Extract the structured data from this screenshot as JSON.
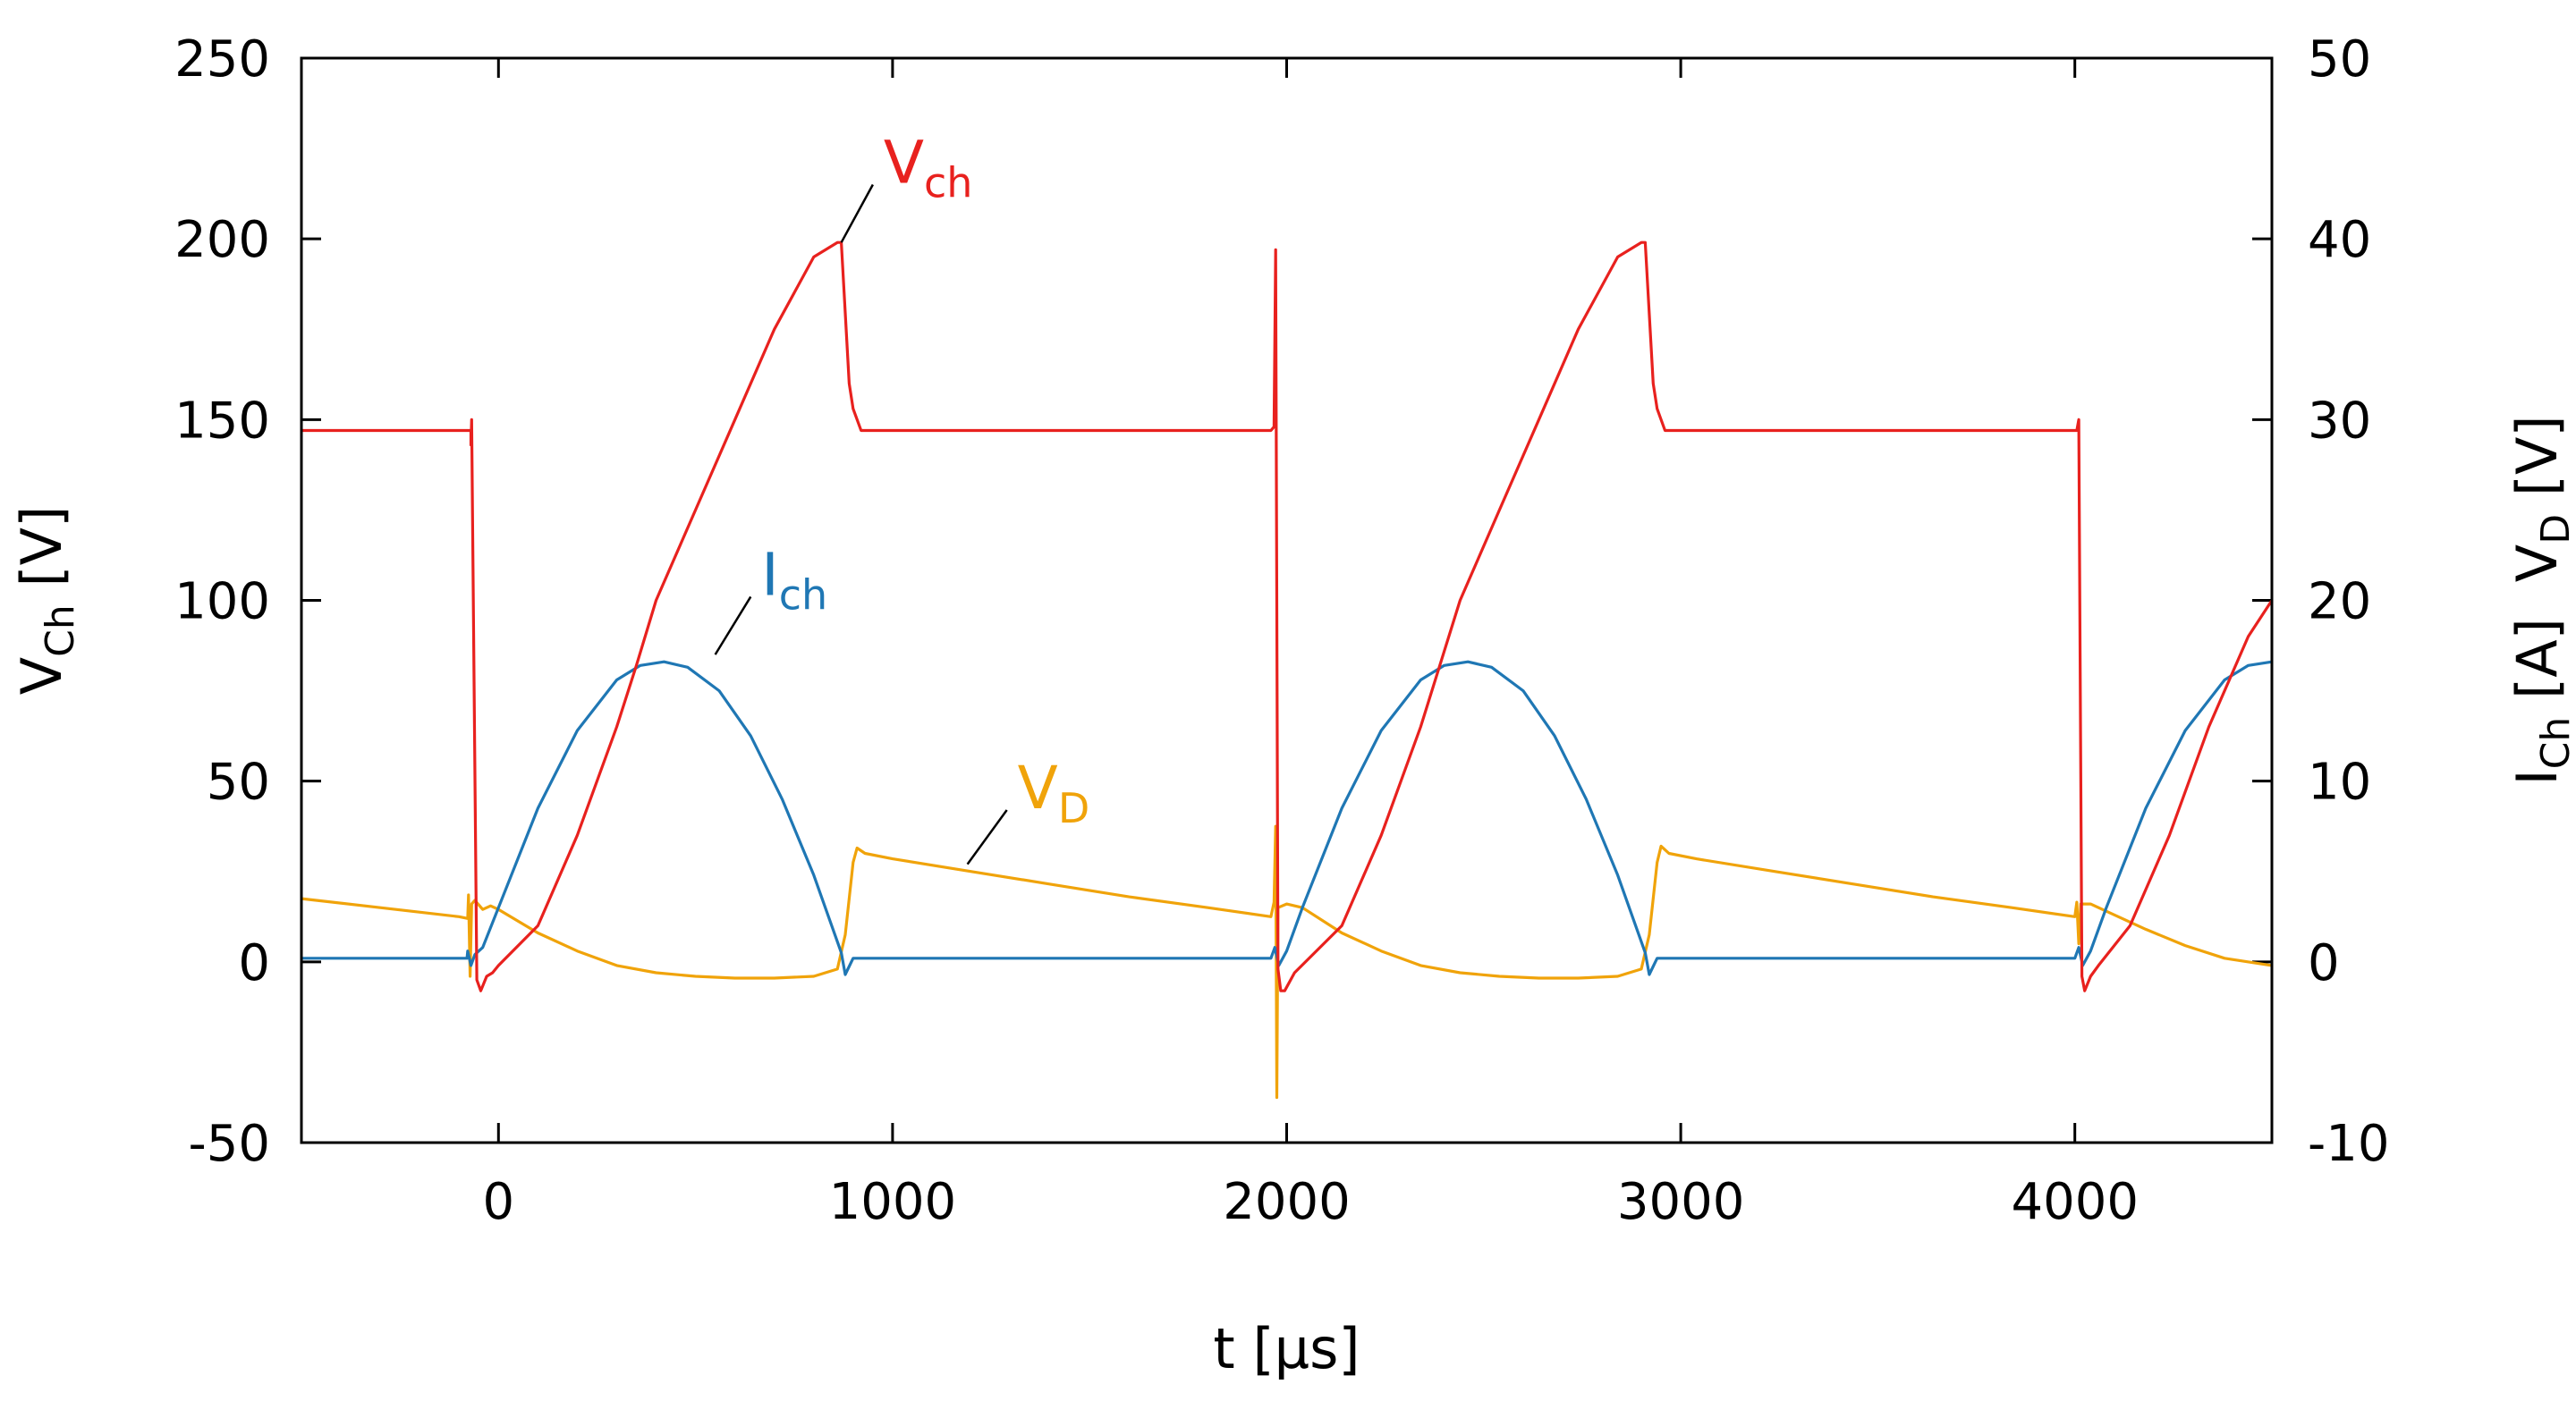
{
  "chart_data": {
    "type": "line",
    "title": "",
    "x": {
      "label_main": "t [µs]",
      "range": [
        -500,
        4500
      ],
      "ticks": [
        0,
        1000,
        2000,
        3000,
        4000
      ],
      "tick_labels": [
        "0",
        "1000",
        "2000",
        "3000",
        "4000"
      ]
    },
    "y_left": {
      "label_main": "V",
      "label_sub": "Ch",
      "label_unit": " [V]",
      "range": [
        -50,
        250
      ],
      "ticks": [
        -50,
        0,
        50,
        100,
        150,
        200,
        250
      ],
      "tick_labels": [
        "-50",
        "0",
        "50",
        "100",
        "150",
        "200",
        "250"
      ]
    },
    "y_right": {
      "label_i_main": "I",
      "label_i_sub": "Ch",
      "label_i_unit": " [A]",
      "label_v_main": "V",
      "label_v_sub": "D",
      "label_v_unit": " [V]",
      "range": [
        -10,
        50
      ],
      "ticks": [
        -10,
        0,
        10,
        20,
        30,
        40,
        50
      ],
      "tick_labels": [
        "-10",
        "0",
        "10",
        "20",
        "30",
        "40",
        "50"
      ]
    },
    "period_us": 2040,
    "series": [
      {
        "name": "Vch",
        "label_main": "V",
        "label_sub": "ch",
        "axis": "left",
        "color": "#e8211e",
        "points": [
          [
            -500,
            147
          ],
          [
            -70,
            147
          ],
          [
            -70,
            143
          ],
          [
            -68,
            150
          ],
          [
            -55,
            -5
          ],
          [
            -45,
            -8
          ],
          [
            -30,
            -4
          ],
          [
            -15,
            -3
          ],
          [
            0,
            -1
          ],
          [
            100,
            10
          ],
          [
            200,
            35
          ],
          [
            300,
            65
          ],
          [
            350,
            82
          ],
          [
            400,
            100
          ],
          [
            500,
            125
          ],
          [
            600,
            150
          ],
          [
            700,
            175
          ],
          [
            800,
            195
          ],
          [
            860,
            199
          ],
          [
            870,
            199
          ],
          [
            890,
            160
          ],
          [
            900,
            153
          ],
          [
            920,
            147
          ],
          [
            1960,
            147
          ],
          [
            1968,
            148
          ],
          [
            1972,
            197
          ],
          [
            1978,
            -2
          ],
          [
            1985,
            -8
          ],
          [
            1995,
            -8
          ],
          [
            2020,
            -3
          ],
          [
            2140,
            10
          ],
          [
            2240,
            35
          ],
          [
            2340,
            65
          ],
          [
            2440,
            100
          ],
          [
            2540,
            125
          ],
          [
            2640,
            150
          ],
          [
            2740,
            175
          ],
          [
            2840,
            195
          ],
          [
            2900,
            199
          ],
          [
            2910,
            199
          ],
          [
            2930,
            160
          ],
          [
            2940,
            153
          ],
          [
            2960,
            147
          ],
          [
            4005,
            147
          ],
          [
            4010,
            150
          ],
          [
            4018,
            -4
          ],
          [
            4025,
            -8
          ],
          [
            4040,
            -4
          ],
          [
            4060,
            -1
          ],
          [
            4140,
            10
          ],
          [
            4240,
            35
          ],
          [
            4340,
            65
          ],
          [
            4440,
            90
          ],
          [
            4500,
            100
          ]
        ]
      },
      {
        "name": "Ich",
        "label_main": "I",
        "label_sub": "ch",
        "axis": "right",
        "color": "#1f77b4",
        "points": [
          [
            -500,
            0.2
          ],
          [
            -80,
            0.2
          ],
          [
            -78,
            0.6
          ],
          [
            -70,
            -0.2
          ],
          [
            -60,
            0.4
          ],
          [
            -40,
            0.8
          ],
          [
            0,
            3.0
          ],
          [
            100,
            8.5
          ],
          [
            200,
            12.8
          ],
          [
            300,
            15.6
          ],
          [
            360,
            16.4
          ],
          [
            420,
            16.6
          ],
          [
            480,
            16.3
          ],
          [
            560,
            15.0
          ],
          [
            640,
            12.5
          ],
          [
            720,
            9.0
          ],
          [
            800,
            4.8
          ],
          [
            870,
            0.5
          ],
          [
            880,
            -0.7
          ],
          [
            900,
            0.2
          ],
          [
            1960,
            0.2
          ],
          [
            1970,
            0.8
          ],
          [
            1980,
            -0.2
          ],
          [
            2000,
            0.6
          ],
          [
            2040,
            3.0
          ],
          [
            2140,
            8.5
          ],
          [
            2240,
            12.8
          ],
          [
            2340,
            15.6
          ],
          [
            2400,
            16.4
          ],
          [
            2460,
            16.6
          ],
          [
            2520,
            16.3
          ],
          [
            2600,
            15.0
          ],
          [
            2680,
            12.5
          ],
          [
            2760,
            9.0
          ],
          [
            2840,
            4.8
          ],
          [
            2910,
            0.5
          ],
          [
            2920,
            -0.7
          ],
          [
            2940,
            0.2
          ],
          [
            4000,
            0.2
          ],
          [
            4010,
            0.8
          ],
          [
            4020,
            -0.2
          ],
          [
            4040,
            0.6
          ],
          [
            4080,
            3.0
          ],
          [
            4180,
            8.5
          ],
          [
            4280,
            12.8
          ],
          [
            4380,
            15.6
          ],
          [
            4440,
            16.4
          ],
          [
            4500,
            16.6
          ]
        ]
      },
      {
        "name": "VD",
        "label_main": "V",
        "label_sub": "D",
        "axis": "right",
        "color": "#f0a30a",
        "points": [
          [
            -500,
            3.5
          ],
          [
            -300,
            3.0
          ],
          [
            -100,
            2.5
          ],
          [
            -78,
            2.4
          ],
          [
            -76,
            3.7
          ],
          [
            -72,
            -0.8
          ],
          [
            -68,
            3.2
          ],
          [
            -60,
            3.4
          ],
          [
            -40,
            2.9
          ],
          [
            -20,
            3.1
          ],
          [
            0,
            2.9
          ],
          [
            100,
            1.6
          ],
          [
            200,
            0.6
          ],
          [
            300,
            -0.2
          ],
          [
            400,
            -0.6
          ],
          [
            500,
            -0.8
          ],
          [
            600,
            -0.9
          ],
          [
            700,
            -0.9
          ],
          [
            800,
            -0.8
          ],
          [
            860,
            -0.4
          ],
          [
            880,
            1.5
          ],
          [
            900,
            5.5
          ],
          [
            910,
            6.3
          ],
          [
            930,
            6.0
          ],
          [
            1000,
            5.7
          ],
          [
            1200,
            5.0
          ],
          [
            1400,
            4.3
          ],
          [
            1600,
            3.6
          ],
          [
            1800,
            3.0
          ],
          [
            1960,
            2.5
          ],
          [
            1968,
            3.3
          ],
          [
            1972,
            7.5
          ],
          [
            1975,
            -7.5
          ],
          [
            1978,
            3.0
          ],
          [
            2000,
            3.2
          ],
          [
            2040,
            3.0
          ],
          [
            2140,
            1.6
          ],
          [
            2240,
            0.6
          ],
          [
            2340,
            -0.2
          ],
          [
            2440,
            -0.6
          ],
          [
            2540,
            -0.8
          ],
          [
            2640,
            -0.9
          ],
          [
            2740,
            -0.9
          ],
          [
            2840,
            -0.8
          ],
          [
            2900,
            -0.4
          ],
          [
            2920,
            1.5
          ],
          [
            2940,
            5.5
          ],
          [
            2950,
            6.4
          ],
          [
            2970,
            6.0
          ],
          [
            3040,
            5.7
          ],
          [
            3240,
            5.0
          ],
          [
            3440,
            4.3
          ],
          [
            3640,
            3.6
          ],
          [
            3840,
            3.0
          ],
          [
            4000,
            2.5
          ],
          [
            4005,
            3.3
          ],
          [
            4010,
            1.0
          ],
          [
            4015,
            3.2
          ],
          [
            4040,
            3.2
          ],
          [
            4080,
            2.8
          ],
          [
            4180,
            1.8
          ],
          [
            4280,
            0.9
          ],
          [
            4380,
            0.2
          ],
          [
            4500,
            -0.2
          ]
        ]
      }
    ],
    "annotations": [
      {
        "series": "Vch",
        "from": [
          870,
          199
        ],
        "to": [
          950,
          215
        ],
        "text_main": "V",
        "text_sub": "ch"
      },
      {
        "series": "Ich",
        "from": [
          550,
          85
        ],
        "to": [
          640,
          101
        ],
        "text_main": "I",
        "text_sub": "ch"
      },
      {
        "series": "VD",
        "from": [
          1190,
          27
        ],
        "to": [
          1290,
          42
        ],
        "text_main": "V",
        "text_sub": "D"
      }
    ]
  }
}
